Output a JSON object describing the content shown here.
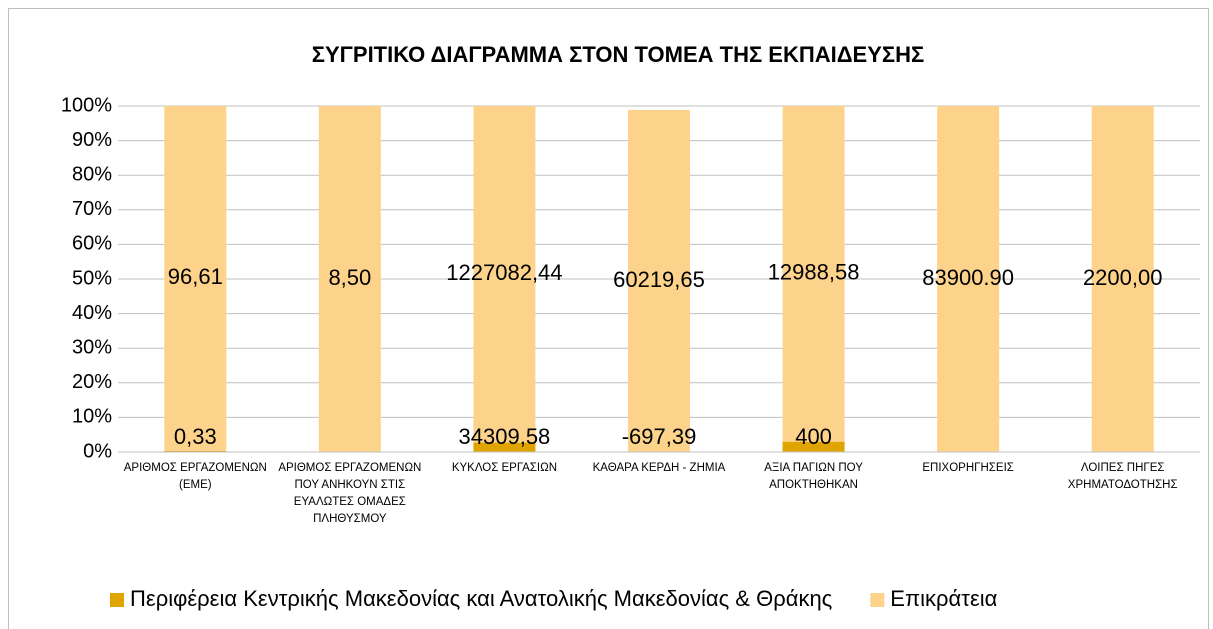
{
  "chart_data": {
    "type": "bar",
    "stacked": "percent",
    "title": "ΣΥΓΡΙΤΙΚΟ ΔΙΑΓΡΑΜΜΑ ΣΤΟΝ ΤΟΜΕΑ ΤΗΣ ΕΚΠΑΙΔΕΥΣΗΣ",
    "categories": [
      "ΑΡΙΘΜΟΣ ΕΡΓΑΖΟΜΕΝΩΝ (ΕΜΕ)",
      "ΑΡΙΘΜΟΣ ΕΡΓΑΖΟΜΕΝΩΝ ΠΟΥ ΑΝΗΚΟΥΝ ΣΤΙΣ ΕΥΑΛΩΤΕΣ ΟΜΑΔΕΣ ΠΛΗΘΥΣΜΟΥ",
      "ΚΥΚΛΟΣ ΕΡΓΑΣΙΩΝ",
      "ΚΑΘΑΡΑ ΚΕΡΔΗ - ΖΗΜΙΑ",
      "ΑΞΙΑ ΠΑΓΙΩΝ ΠΟΥ ΑΠΟΚΤΗΘΗΚΑΝ",
      "ΕΠΙΧΟΡΗΓΗΣΕΙΣ",
      "ΛΟΙΠΕΣ ΠΗΓΕΣ ΧΡΗΜΑΤΟΔΟΤΗΣΗΣ"
    ],
    "series": [
      {
        "name": "Περιφέρεια Κεντρικής Μακεδονίας και Ανατολικής Μακεδονίας & Θράκης",
        "color": "#dfa400",
        "values": [
          0.33,
          null,
          34309.58,
          -697.39,
          400,
          null,
          null
        ],
        "value_labels": [
          "0,33",
          null,
          "34309,58",
          "-697,39",
          "400",
          null,
          null
        ]
      },
      {
        "name": "Επικράτεια",
        "color": "#fdd38c",
        "values": [
          96.61,
          8.5,
          1227082.44,
          60219.65,
          12988.58,
          83900.9,
          2200
        ],
        "value_labels": [
          "96,61",
          "8,50",
          "1227082,44",
          "60219,65",
          "12988,58",
          "83900.90",
          "2200,00"
        ]
      }
    ],
    "ylim": [
      0,
      100
    ],
    "yticks": [
      {
        "value": 0,
        "label": "0%"
      },
      {
        "value": 10,
        "label": "10%"
      },
      {
        "value": 20,
        "label": "20%"
      },
      {
        "value": 30,
        "label": "30%"
      },
      {
        "value": 40,
        "label": "40%"
      },
      {
        "value": 50,
        "label": "50%"
      },
      {
        "value": 60,
        "label": "60%"
      },
      {
        "value": 70,
        "label": "70%"
      },
      {
        "value": 80,
        "label": "80%"
      },
      {
        "value": 90,
        "label": "90%"
      },
      {
        "value": 100,
        "label": "100%"
      }
    ],
    "grid": true,
    "legend": "bottom"
  }
}
